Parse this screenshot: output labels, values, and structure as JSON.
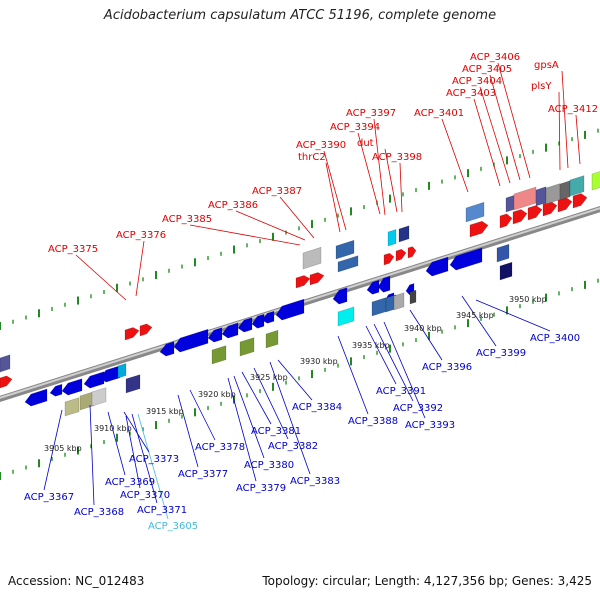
{
  "title": "Acidobacterium capsulatum ATCC 51196, complete genome",
  "accession": "Accession: NC_012483",
  "topology": "Topology: circular; Length: 4,127,356 bp; Genes: 3,425",
  "colors": {
    "top_label": "#dd0000",
    "bottom_label": "#0000cc",
    "highlight_label": "#44bbdd"
  },
  "kbp_labels": [
    "3905 kbp",
    "3910 kbp",
    "3915 kbp",
    "3920 kbp",
    "3925 kbp",
    "3930 kbp",
    "3935 kbp",
    "3940 kbp",
    "3945 kbp",
    "3950 kbp"
  ],
  "top_genes": [
    "ACP_3375",
    "ACP_3376",
    "ACP_3385",
    "ACP_3386",
    "ACP_3387",
    "thrC2",
    "ACP_3390",
    "ACP_3394",
    "ACP_3397",
    "dut",
    "ACP_3398",
    "ACP_3401",
    "ACP_3403",
    "ACP_3404",
    "ACP_3405",
    "ACP_3406",
    "gpsA",
    "plsY",
    "ACP_3412"
  ],
  "bottom_genes": [
    "ACP_3367",
    "ACP_3368",
    "ACP_3369",
    "ACP_3370",
    "ACP_3371",
    "ACP_3605",
    "ACP_3373",
    "ACP_3377",
    "ACP_3378",
    "ACP_3379",
    "ACP_3380",
    "ACP_3381",
    "ACP_3382",
    "ACP_3383",
    "ACP_3384",
    "ACP_3388",
    "ACP_3391",
    "ACP_3392",
    "ACP_3393",
    "ACP_3396",
    "ACP_3399",
    "ACP_3400"
  ]
}
